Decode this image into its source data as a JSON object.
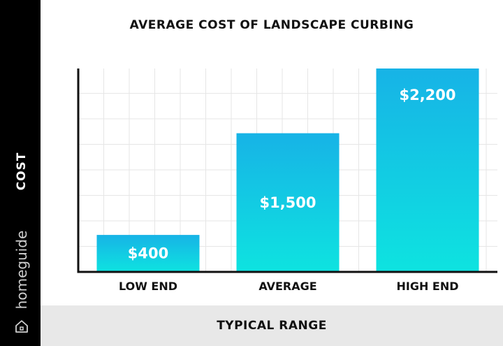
{
  "chart_data": {
    "type": "bar",
    "title": "AVERAGE COST OF LANDSCAPE CURBING",
    "ylabel": "COST",
    "xlabel": "TYPICAL RANGE",
    "categories": [
      "LOW END",
      "AVERAGE",
      "HIGH END"
    ],
    "values": [
      400,
      1500,
      2200
    ],
    "data_labels": [
      "$400",
      "$1,500",
      "$2,200"
    ],
    "ylim": [
      0,
      2200
    ],
    "grid": true,
    "legend": "none",
    "bar_gradient": [
      "#17b3e6",
      "#0ee3e0"
    ]
  },
  "brand": {
    "name": "homeguide",
    "icon": "house-icon"
  }
}
